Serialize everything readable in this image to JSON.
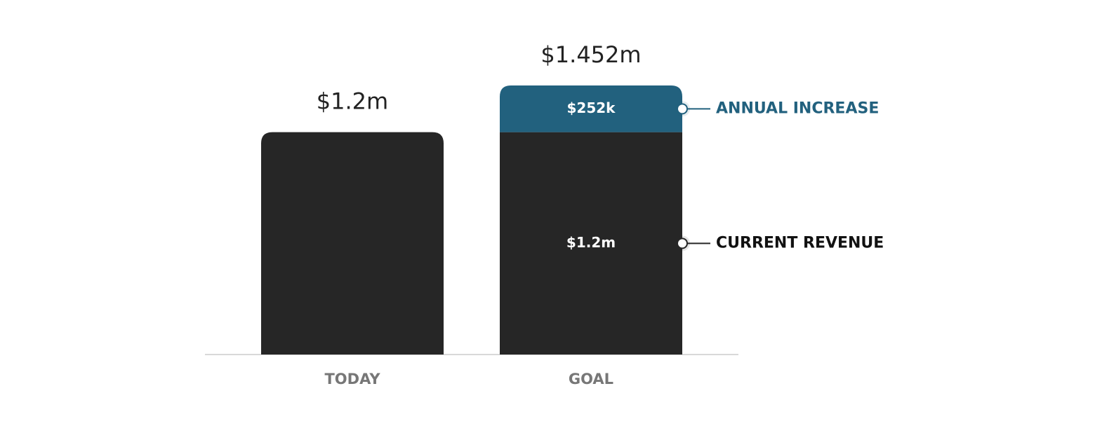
{
  "chart_data": {
    "type": "stacked-bar",
    "categories": [
      "TODAY",
      "GOAL"
    ],
    "series": [
      {
        "name": "CURRENT REVENUE",
        "color": "#262626",
        "values": [
          1200000,
          1200000
        ],
        "value_labels": [
          null,
          "$1.2m"
        ]
      },
      {
        "name": "ANNUAL INCREASE",
        "color": "#22617e",
        "values": [
          null,
          252000
        ],
        "value_labels": [
          null,
          "$252k"
        ]
      }
    ],
    "totals": [
      1200000,
      1452000
    ],
    "total_labels": [
      "$1.2m",
      "$1.452m"
    ]
  }
}
